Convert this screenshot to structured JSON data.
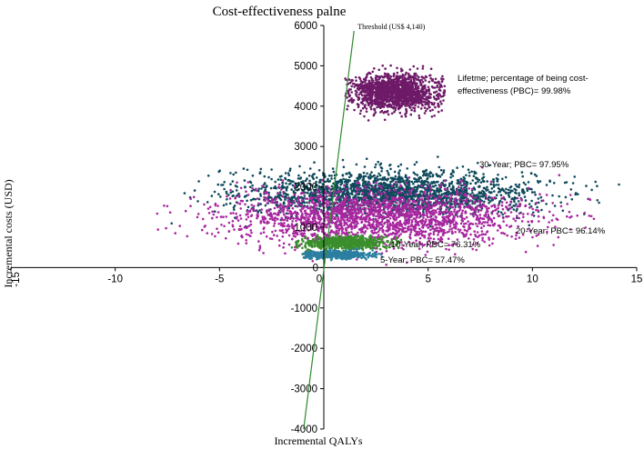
{
  "chart_data": {
    "type": "scatter",
    "title": "Cost-effectiveness palne",
    "xlabel": "Incremental QALYs",
    "ylabel": "Incremental costs (USD)",
    "xlim": [
      -15,
      15
    ],
    "ylim": [
      -4000,
      6000
    ],
    "x_ticks": [
      -15,
      -10,
      -5,
      0,
      5,
      10,
      15
    ],
    "y_ticks": [
      -4000,
      -3000,
      -2000,
      -1000,
      0,
      1000,
      2000,
      3000,
      4000,
      5000,
      6000
    ],
    "threshold": {
      "label": "Threshold (US$ 4,140)",
      "slope": 4140,
      "color": "#2e8b2e"
    },
    "series": [
      {
        "name": "30-Year",
        "label": "30-Year; PBC= 97.95%",
        "color": "#0f4a5c",
        "center": [
          3.2,
          1850
        ],
        "spread": [
          3.4,
          270
        ],
        "count": 2200,
        "range": [
          -7.5,
          14.5
        ],
        "order": 1
      },
      {
        "name": "20-Year",
        "label": "20-Year; PBC= 96.14%",
        "color": "#a8279f",
        "center": [
          2.6,
          1250
        ],
        "spread": [
          3.6,
          330
        ],
        "count": 2200,
        "range": [
          -13,
          13
        ],
        "order": 2
      },
      {
        "name": "10-Year",
        "label": "10-Year; PBC= 76.31%",
        "color": "#3a8f2c",
        "center": [
          1.1,
          610
        ],
        "spread": [
          1.0,
          80
        ],
        "count": 700,
        "range": [
          -1.6,
          3.8
        ],
        "order": 3
      },
      {
        "name": "5-Year",
        "label": "5-Year; PBC= 57.47%",
        "color": "#2b7fa0",
        "center": [
          0.6,
          320
        ],
        "spread": [
          0.75,
          45
        ],
        "count": 600,
        "range": [
          -1.0,
          2.8
        ],
        "order": 4
      },
      {
        "name": "Lifetme",
        "label": "Lifetme; percentage of being cost-effectiveness (PBC)= 99.98%",
        "label_lines": [
          "Lifetme; percentage of being cost-",
          "effectiveness (PBC)= 99.98%"
        ],
        "color": "#6e1a68",
        "center": [
          3.4,
          4350
        ],
        "spread": [
          1.0,
          220
        ],
        "count": 1500,
        "range": [
          1.0,
          5.8
        ],
        "order": 5
      }
    ]
  }
}
